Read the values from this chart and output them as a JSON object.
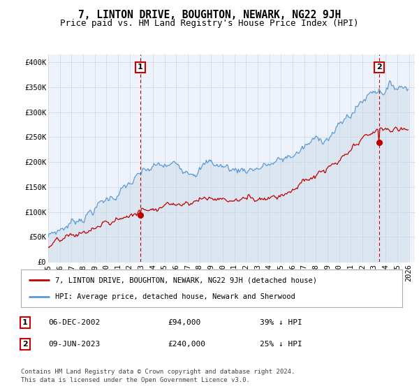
{
  "title": "7, LINTON DRIVE, BOUGHTON, NEWARK, NG22 9JH",
  "subtitle": "Price paid vs. HM Land Registry's House Price Index (HPI)",
  "ylabel_ticks": [
    "£0",
    "£50K",
    "£100K",
    "£150K",
    "£200K",
    "£250K",
    "£300K",
    "£350K",
    "£400K"
  ],
  "ytick_values": [
    0,
    50000,
    100000,
    150000,
    200000,
    250000,
    300000,
    350000,
    400000
  ],
  "ylim": [
    0,
    415000
  ],
  "xlim_start": 1995.0,
  "xlim_end": 2026.5,
  "xtick_years": [
    1995,
    1996,
    1997,
    1998,
    1999,
    2000,
    2001,
    2002,
    2003,
    2004,
    2005,
    2006,
    2007,
    2008,
    2009,
    2010,
    2011,
    2012,
    2013,
    2014,
    2015,
    2016,
    2017,
    2018,
    2019,
    2020,
    2021,
    2022,
    2023,
    2024,
    2025,
    2026
  ],
  "hpi_color": "#5b9bd5",
  "hpi_fill_color": "#dce6f1",
  "price_color": "#c00000",
  "vline_color": "#c00000",
  "transaction1_date_num": 2002.92,
  "transaction1_price": 94000,
  "transaction1_label": "1",
  "transaction2_date_num": 2023.44,
  "transaction2_price": 240000,
  "transaction2_label": "2",
  "legend_line1": "7, LINTON DRIVE, BOUGHTON, NEWARK, NG22 9JH (detached house)",
  "legend_line2": "HPI: Average price, detached house, Newark and Sherwood",
  "table_row1": [
    "1",
    "06-DEC-2002",
    "£94,000",
    "39% ↓ HPI"
  ],
  "table_row2": [
    "2",
    "09-JUN-2023",
    "£240,000",
    "25% ↓ HPI"
  ],
  "footer1": "Contains HM Land Registry data © Crown copyright and database right 2024.",
  "footer2": "This data is licensed under the Open Government Licence v3.0.",
  "bg_color": "#ffffff",
  "plot_bg_color": "#eef3fb",
  "grid_color": "#c8d4e8",
  "title_fontsize": 10.5,
  "subtitle_fontsize": 9,
  "tick_fontsize": 7.5,
  "label_box_color": "#cc0000"
}
